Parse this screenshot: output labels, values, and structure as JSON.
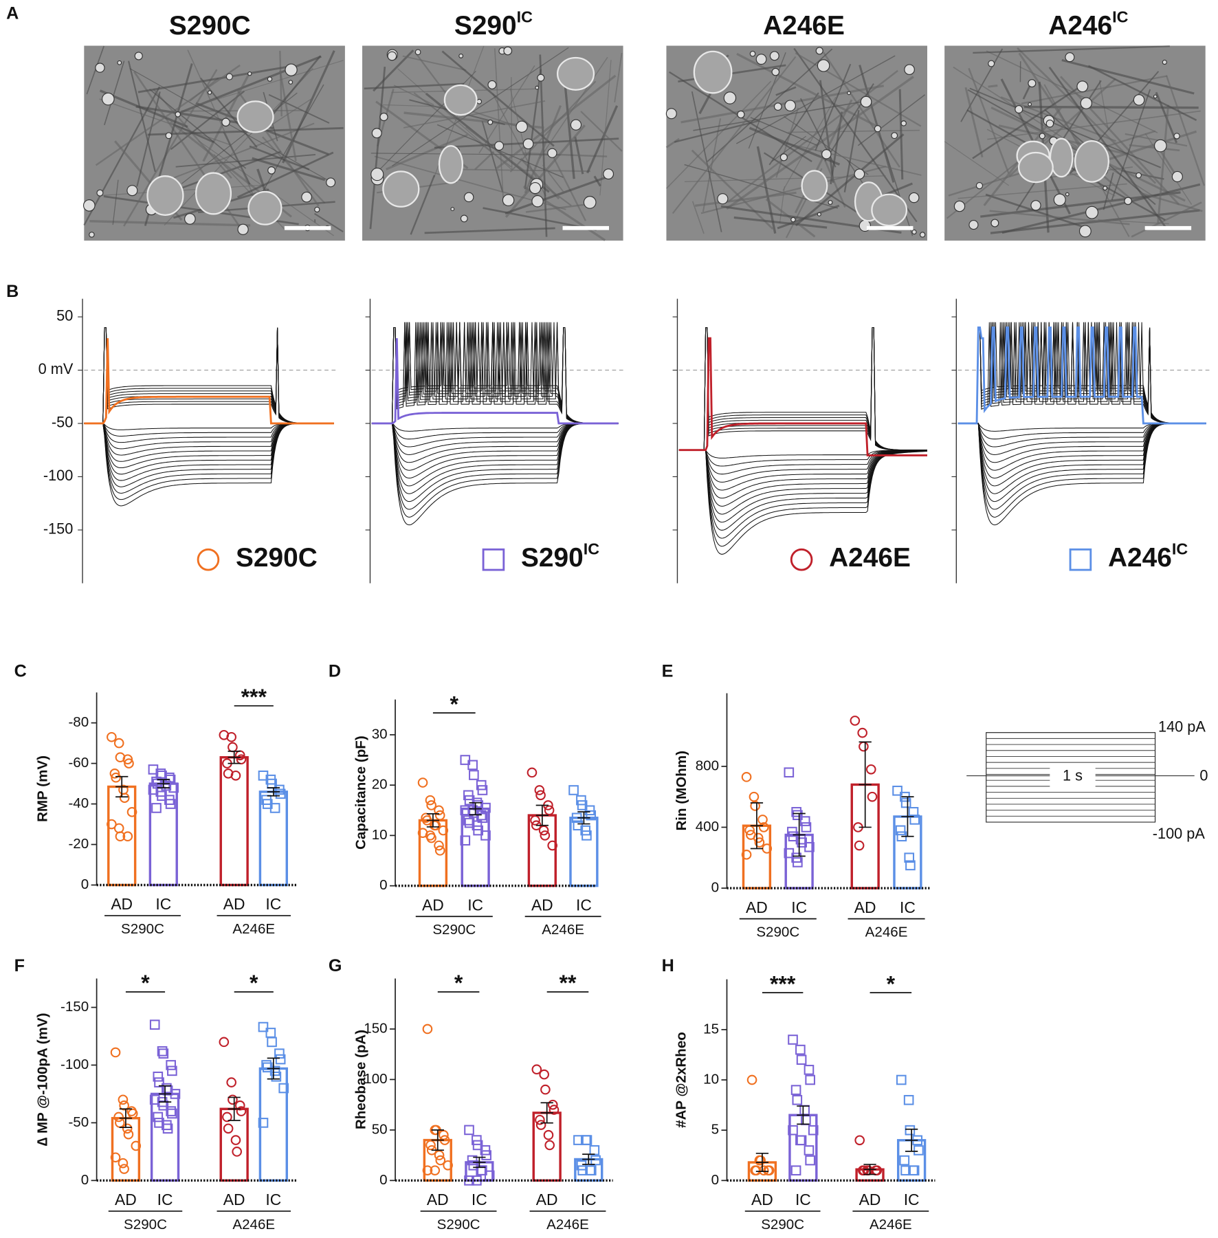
{
  "micrographs": {
    "panel": "A",
    "titles": [
      {
        "label": "S290C"
      },
      {
        "label": "S290",
        "sup": "IC"
      },
      {
        "label": "A246E"
      },
      {
        "label": "A246",
        "sup": "IC"
      }
    ]
  },
  "traces": {
    "panel": "B",
    "ylim": [
      -200,
      67
    ],
    "yticks": [
      50,
      {
        "value": 0,
        "label": "0 mV"
      },
      -50,
      -100,
      -150
    ],
    "legend": [
      {
        "label": "S290C",
        "color": "#f07020",
        "marker": "circle"
      },
      {
        "label": "S290",
        "sup": "IC",
        "color": "#7a62d6",
        "marker": "square"
      },
      {
        "label": "A246E",
        "color": "#c0202a",
        "marker": "circle"
      },
      {
        "label": "A246",
        "sup": "IC",
        "color": "#5b8fe6",
        "marker": "square"
      }
    ]
  },
  "protocol": {
    "top": "140 pA",
    "zero": "0",
    "bottom": "-100 pA",
    "duration": "1 s"
  },
  "chart_data": [
    {
      "type": "bar",
      "panel": "C",
      "ylabel": "RMP (mV)",
      "ylim": [
        0,
        -95
      ],
      "yticks": [
        0,
        -20,
        -40,
        -60,
        -80
      ],
      "categories": [
        "AD",
        "IC",
        "AD",
        "IC"
      ],
      "groups": [
        "S290C",
        "A246E"
      ],
      "colors": [
        "#f07020",
        "#7a62d6",
        "#c0202a",
        "#5b8fe6"
      ],
      "markers": [
        "circle",
        "square",
        "circle",
        "square"
      ],
      "significance": [
        null,
        "***"
      ],
      "values": [
        -48.5,
        -50,
        -63,
        -46
      ],
      "errors": [
        5,
        2,
        3,
        2
      ],
      "points": [
        [
          -73,
          -70,
          -63,
          -62,
          -60,
          -55,
          -53,
          -47,
          -43,
          -36,
          -30,
          -28,
          -24,
          -24
        ],
        [
          -57,
          -55,
          -54,
          -53,
          -52,
          -51,
          -50,
          -50,
          -49,
          -48,
          -47,
          -46,
          -44,
          -42,
          -40,
          -38
        ],
        [
          -74,
          -73,
          -68,
          -64,
          -62,
          -60,
          -55,
          -54
        ],
        [
          -54,
          -52,
          -50,
          -47,
          -45,
          -42,
          -40,
          -38
        ]
      ]
    },
    {
      "type": "bar",
      "panel": "D",
      "ylabel": "Capacitance (pF)",
      "ylim": [
        0,
        37
      ],
      "yticks": [
        0,
        10,
        20,
        30
      ],
      "categories": [
        "AD",
        "IC",
        "AD",
        "IC"
      ],
      "groups": [
        "S290C",
        "A246E"
      ],
      "colors": [
        "#f07020",
        "#7a62d6",
        "#c0202a",
        "#5b8fe6"
      ],
      "markers": [
        "circle",
        "square",
        "circle",
        "square"
      ],
      "significance": [
        "*",
        null
      ],
      "values": [
        13,
        15.3,
        14,
        13.5
      ],
      "errors": [
        1.3,
        1.2,
        2,
        1.2
      ],
      "points": [
        [
          20.5,
          17,
          16,
          15,
          14,
          13.5,
          13,
          12,
          12,
          11,
          10.5,
          10,
          9.5,
          8,
          7
        ],
        [
          25,
          24,
          22,
          20,
          19,
          18,
          17,
          16.5,
          16,
          15.5,
          15,
          15,
          14.5,
          14,
          13.5,
          13,
          12.5,
          12,
          11,
          10,
          9
        ],
        [
          22.5,
          19,
          18,
          16,
          15,
          13,
          12,
          11,
          10,
          8
        ],
        [
          19,
          17,
          16,
          15,
          14,
          13.5,
          12,
          11,
          10
        ]
      ]
    },
    {
      "type": "bar",
      "panel": "E",
      "ylabel": "Rin (MOhm)",
      "ylim": [
        0,
        1280
      ],
      "yticks": [
        0,
        400,
        800
      ],
      "categories": [
        "AD",
        "IC",
        "AD",
        "IC"
      ],
      "groups": [
        "S290C",
        "A246E"
      ],
      "colors": [
        "#f07020",
        "#7a62d6",
        "#c0202a",
        "#5b8fe6"
      ],
      "markers": [
        "circle",
        "square",
        "circle",
        "square"
      ],
      "significance": [
        null,
        null
      ],
      "values": [
        410,
        350,
        680,
        470
      ],
      "errors": [
        150,
        140,
        280,
        130
      ],
      "points": [
        [
          730,
          600,
          540,
          450,
          400,
          380,
          350,
          330,
          300,
          260,
          220
        ],
        [
          760,
          500,
          480,
          440,
          400,
          370,
          340,
          320,
          300,
          270,
          230,
          200,
          170
        ],
        [
          1100,
          1020,
          930,
          780,
          600,
          400,
          280
        ],
        [
          640,
          600,
          560,
          500,
          450,
          380,
          340,
          200,
          150
        ]
      ]
    },
    {
      "type": "bar",
      "panel": "F",
      "ylabel": "∆ MP @-100pA (mV)",
      "ylim": [
        0,
        -175
      ],
      "yticks": [
        0,
        -50,
        -100,
        -150
      ],
      "categories": [
        "AD",
        "IC",
        "AD",
        "IC"
      ],
      "groups": [
        "S290C",
        "A246E"
      ],
      "colors": [
        "#f07020",
        "#7a62d6",
        "#c0202a",
        "#5b8fe6"
      ],
      "markers": [
        "circle",
        "square",
        "circle",
        "square"
      ],
      "significance": [
        "*",
        "*"
      ],
      "values": [
        -54,
        -75,
        -62,
        -97
      ],
      "errors": [
        8,
        7,
        10,
        9
      ],
      "points": [
        [
          -111,
          -70,
          -65,
          -60,
          -58,
          -55,
          -50,
          -45,
          -40,
          -30,
          -20,
          -15,
          -10
        ],
        [
          -135,
          -112,
          -110,
          -100,
          -95,
          -90,
          -85,
          -80,
          -78,
          -75,
          -70,
          -68,
          -65,
          -60,
          -58,
          -55,
          -50,
          -48,
          -45
        ],
        [
          -120,
          -85,
          -70,
          -65,
          -60,
          -55,
          -45,
          -35,
          -25
        ],
        [
          -133,
          -128,
          -120,
          -110,
          -105,
          -100,
          -98,
          -95,
          -90,
          -80,
          -50
        ]
      ]
    },
    {
      "type": "bar",
      "panel": "G",
      "ylabel": "Rheobase (pA)",
      "ylim": [
        0,
        200
      ],
      "yticks": [
        0,
        50,
        100,
        150
      ],
      "categories": [
        "AD",
        "IC",
        "AD",
        "IC"
      ],
      "groups": [
        "S290C",
        "A246E"
      ],
      "colors": [
        "#f07020",
        "#7a62d6",
        "#c0202a",
        "#5b8fe6"
      ],
      "markers": [
        "circle",
        "square",
        "circle",
        "square"
      ],
      "significance": [
        "*",
        "**"
      ],
      "values": [
        40,
        18,
        67,
        21
      ],
      "errors": [
        10,
        5,
        10,
        5
      ],
      "points": [
        [
          150,
          50,
          50,
          45,
          40,
          35,
          30,
          25,
          20,
          15,
          10,
          10
        ],
        [
          50,
          40,
          35,
          30,
          25,
          20,
          15,
          10,
          10,
          5,
          0,
          0
        ],
        [
          110,
          105,
          90,
          75,
          70,
          60,
          55,
          45,
          35
        ],
        [
          40,
          40,
          40,
          30,
          20,
          15,
          10,
          10,
          10
        ]
      ]
    },
    {
      "type": "bar",
      "panel": "H",
      "ylabel": "#AP @2xRheo",
      "ylim": [
        0,
        20
      ],
      "yticks": [
        0,
        5,
        10,
        15
      ],
      "categories": [
        "AD",
        "IC",
        "AD",
        "IC"
      ],
      "groups": [
        "S290C",
        "A246E"
      ],
      "colors": [
        "#f07020",
        "#7a62d6",
        "#c0202a",
        "#5b8fe6"
      ],
      "markers": [
        "circle",
        "square",
        "circle",
        "square"
      ],
      "significance": [
        "***",
        "*"
      ],
      "values": [
        1.8,
        6.5,
        1.1,
        4
      ],
      "errors": [
        0.9,
        0.9,
        0.5,
        1.1
      ],
      "points": [
        [
          10,
          2,
          2,
          1,
          1,
          1,
          1,
          1
        ],
        [
          14,
          13,
          12,
          11,
          10,
          9,
          8,
          7,
          6,
          5,
          5,
          4,
          4,
          3,
          2,
          1
        ],
        [
          4,
          1,
          1,
          1,
          1,
          1,
          1
        ],
        [
          10,
          8,
          5,
          4,
          3,
          2,
          1,
          1,
          1
        ]
      ]
    }
  ]
}
